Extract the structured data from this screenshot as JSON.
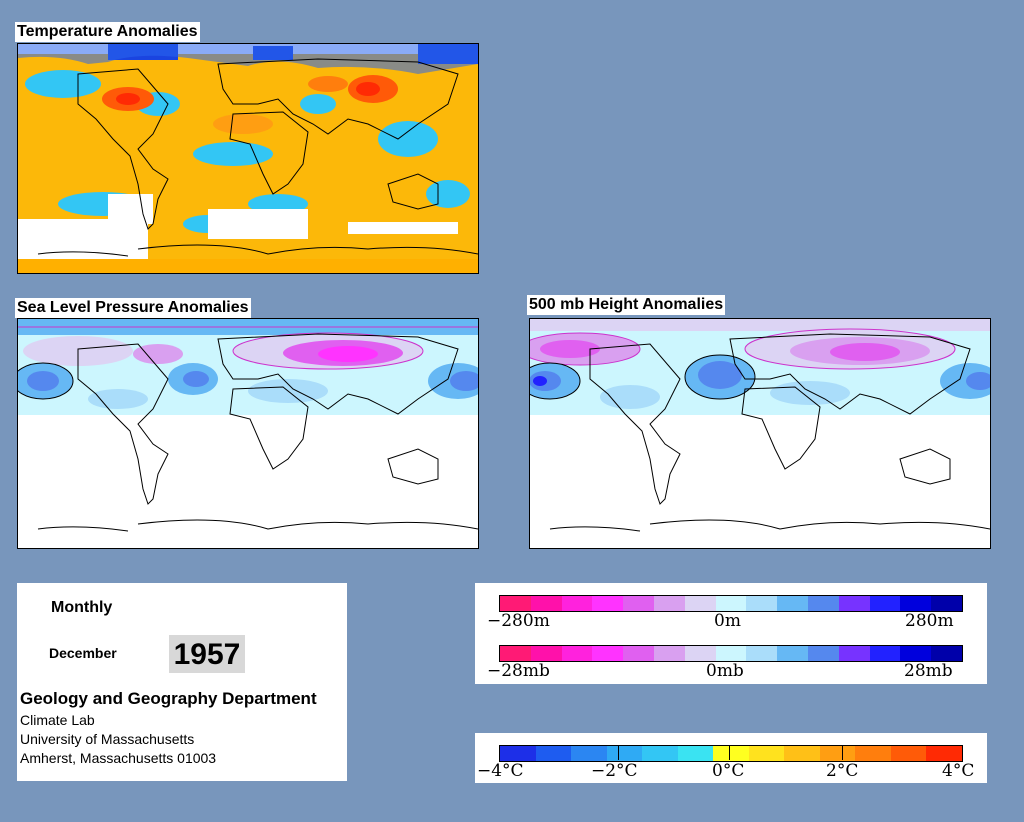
{
  "maps": {
    "temperature": {
      "title": "Temperature Anomalies"
    },
    "slp": {
      "title": "Sea Level Pressure Anomalies"
    },
    "height500": {
      "title": "500 mb Height Anomalies"
    }
  },
  "info": {
    "period": "Monthly",
    "month": "December",
    "year": "1957",
    "department": "Geology and Geography Department",
    "lab": "Climate Lab",
    "university": "University of Massachusetts",
    "address": "Amherst, Massachusetts 01003"
  },
  "legend_height": {
    "min_label": "−280m",
    "mid_label": "0m",
    "max_label": "280m",
    "colors": [
      "#ff1a75",
      "#ff11aa",
      "#ff22dd",
      "#ff33ff",
      "#e060f0",
      "#d9a0f0",
      "#dcd4f4",
      "#ccf6fe",
      "#aaddfa",
      "#66b8f4",
      "#5588ee",
      "#7733ff",
      "#2222ff",
      "#0000dd",
      "#0000aa"
    ]
  },
  "legend_pressure": {
    "min_label": "−28mb",
    "mid_label": "0mb",
    "max_label": "28mb",
    "colors": [
      "#ff1a75",
      "#ff11aa",
      "#ff22dd",
      "#ff33ff",
      "#e060f0",
      "#d9a0f0",
      "#dcd4f4",
      "#ccf6fe",
      "#aaddfa",
      "#66b8f4",
      "#5588ee",
      "#7733ff",
      "#2222ff",
      "#0000dd",
      "#0000aa"
    ]
  },
  "legend_temperature": {
    "labels": [
      "−4°C",
      "−2°C",
      "0°C",
      "2°C",
      "4°C"
    ],
    "colors": [
      "#1d2fe8",
      "#1e5cf0",
      "#2b86f2",
      "#2faaf4",
      "#33c6f4",
      "#3ae3f2",
      "#ffff20",
      "#ffe21e",
      "#ffc017",
      "#ff9e12",
      "#ff7e0d",
      "#ff5b08",
      "#ff2a04"
    ]
  }
}
